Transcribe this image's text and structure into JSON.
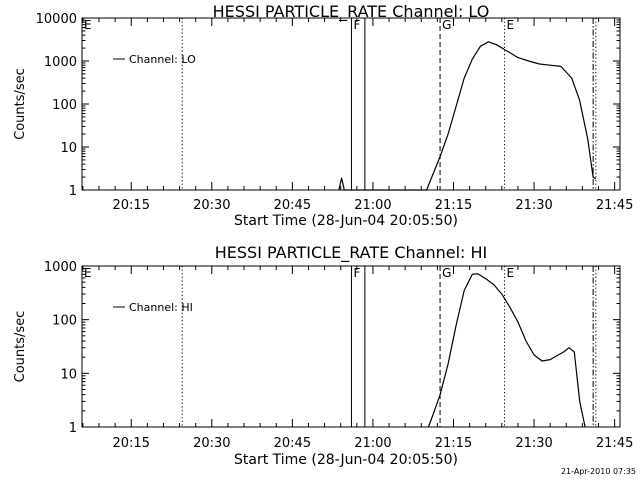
{
  "footer_timestamp": "21-Apr-2010 07:35",
  "chart_data": [
    {
      "type": "line",
      "title": "HESSI PARTICLE_RATE Channel: LO",
      "xlabel": "Start Time (28-Jun-04 20:05:50)",
      "ylabel": "Counts/sec",
      "yscale": "log",
      "ylim": [
        1,
        10000
      ],
      "yticks": [
        "1",
        "10",
        "100",
        "1000",
        "10000"
      ],
      "xlim": [
        "20:05:50",
        "21:46:00"
      ],
      "xticks": [
        "20:15",
        "20:30",
        "20:45",
        "21:00",
        "21:15",
        "21:30",
        "21:45"
      ],
      "legend": "Channel: LO",
      "legend_position": "top-left",
      "flags": [
        {
          "label": "E",
          "time": "20:05:50",
          "style": "dotted"
        },
        {
          "label": "F",
          "time": "20:56:00",
          "style": "solid"
        },
        {
          "label": "",
          "time": "20:58:30",
          "style": "solid"
        },
        {
          "label": "G",
          "time": "21:12:30",
          "style": "dashed"
        },
        {
          "label": "E",
          "time": "21:24:30",
          "style": "dotted"
        },
        {
          "label": "",
          "time": "20:24:30",
          "style": "dotted"
        },
        {
          "label": "",
          "time": "21:41:00",
          "style": "dashdot"
        },
        {
          "label": "",
          "time": "21:41:30",
          "style": "dotted"
        }
      ],
      "series": [
        {
          "x": [
            "20:53:40",
            "20:54:10",
            "20:54:40",
            "21:10:00",
            "21:12:30",
            "21:14:00",
            "21:15:30",
            "21:17:00",
            "21:18:30",
            "21:20:00",
            "21:21:30",
            "21:23:00",
            "21:25:00",
            "21:27:00",
            "21:29:00",
            "21:31:00",
            "21:33:00",
            "21:35:00",
            "21:37:00",
            "21:38:30",
            "21:40:00",
            "21:41:00",
            "21:41:30"
          ],
          "y": [
            1,
            1.9,
            1,
            1,
            6,
            20,
            90,
            400,
            1100,
            2200,
            2800,
            2400,
            1700,
            1200,
            1000,
            850,
            800,
            750,
            400,
            120,
            15,
            2,
            1.8
          ]
        }
      ]
    },
    {
      "type": "line",
      "title": "HESSI PARTICLE_RATE Channel: HI",
      "xlabel": "Start Time (28-Jun-04 20:05:50)",
      "ylabel": "Counts/sec",
      "yscale": "log",
      "ylim": [
        1,
        1000
      ],
      "yticks": [
        "1",
        "10",
        "100",
        "1000"
      ],
      "xlim": [
        "20:05:50",
        "21:46:00"
      ],
      "xticks": [
        "20:15",
        "20:30",
        "20:45",
        "21:00",
        "21:15",
        "21:30",
        "21:45"
      ],
      "legend": "Channel: HI",
      "legend_position": "top-left",
      "flags": [
        {
          "label": "E",
          "time": "20:05:50",
          "style": "dotted"
        },
        {
          "label": "F",
          "time": "20:56:00",
          "style": "solid"
        },
        {
          "label": "",
          "time": "20:58:30",
          "style": "solid"
        },
        {
          "label": "G",
          "time": "21:12:30",
          "style": "dashed"
        },
        {
          "label": "E",
          "time": "21:24:30",
          "style": "dotted"
        },
        {
          "label": "",
          "time": "20:24:30",
          "style": "dotted"
        },
        {
          "label": "",
          "time": "21:41:00",
          "style": "dashdot"
        },
        {
          "label": "",
          "time": "21:41:30",
          "style": "dotted"
        }
      ],
      "series": [
        {
          "x": [
            "21:10:20",
            "21:11:00",
            "21:12:30",
            "21:14:00",
            "21:15:30",
            "21:17:00",
            "21:18:30",
            "21:19:30",
            "21:21:00",
            "21:22:30",
            "21:24:00",
            "21:25:30",
            "21:27:00",
            "21:28:30",
            "21:30:00",
            "21:31:30",
            "21:33:00",
            "21:34:30",
            "21:35:30",
            "21:36:30",
            "21:37:30",
            "21:38:30",
            "21:39:30"
          ],
          "y": [
            1,
            1.5,
            4,
            15,
            80,
            350,
            700,
            720,
            580,
            450,
            300,
            170,
            90,
            40,
            22,
            17,
            18,
            22,
            25,
            30,
            25,
            3,
            1
          ]
        }
      ]
    }
  ]
}
